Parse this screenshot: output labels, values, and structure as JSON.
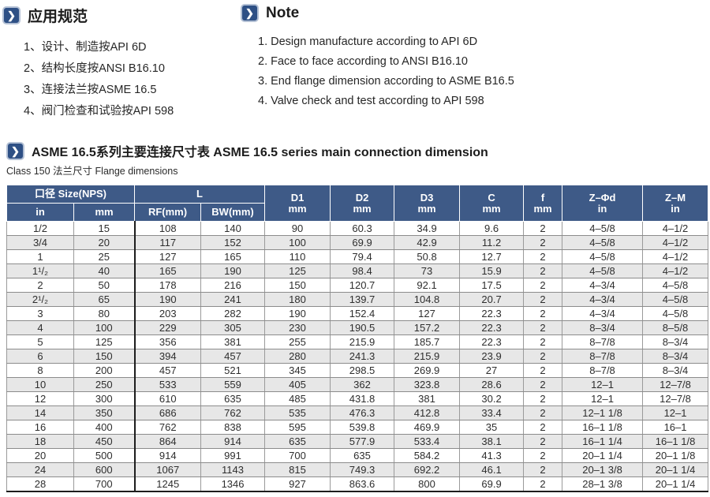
{
  "icons": {
    "chevron_glyph": "❯"
  },
  "spec_section": {
    "title": "应用规范",
    "items": [
      "1、设计、制造按API 6D",
      "2、结构长度按ANSI B16.10",
      "3、连接法兰按ASME 16.5",
      "4、阀门检查和试验按API 598"
    ]
  },
  "note_section": {
    "title": "Note",
    "items": [
      "1. Design manufacture according to API 6D",
      "2. Face to face according to ANSI B16.10",
      "3. End flange dimension according to ASME B16.5",
      "4. Valve check and test according to API 598"
    ]
  },
  "table_section": {
    "title": "ASME 16.5系列主要连接尺寸表 ASME 16.5 series main connection dimension",
    "subtitle": "Class 150 法兰尺寸 Flange dimensions"
  },
  "colors": {
    "header_blue": "#3e5a87",
    "icon_blue": "#2e5085",
    "stripe_gray": "#e7e7e7"
  },
  "table": {
    "headers": {
      "size_group": "口径 Size(NPS)",
      "size_in": "in",
      "size_mm": "mm",
      "l_group": "L",
      "l_rf": "RF(mm)",
      "l_bw": "BW(mm)",
      "d1": [
        "D1",
        "mm"
      ],
      "d2": [
        "D2",
        "mm"
      ],
      "d3": [
        "D3",
        "mm"
      ],
      "c": [
        "C",
        "mm"
      ],
      "f": [
        "f",
        "mm"
      ],
      "zd": [
        "Z–Φd",
        "in"
      ],
      "zm": [
        "Z–M",
        "in"
      ]
    },
    "column_ids": [
      "size-in",
      "size-mm",
      "l-rf",
      "l-bw",
      "d1",
      "d2",
      "d3",
      "c",
      "f",
      "z-phi-d",
      "z-m"
    ],
    "rows": [
      [
        "1/2",
        "15",
        "108",
        "140",
        "90",
        "60.3",
        "34.9",
        "9.6",
        "2",
        "4–5/8",
        "4–1/2"
      ],
      [
        "3/4",
        "20",
        "117",
        "152",
        "100",
        "69.9",
        "42.9",
        "11.2",
        "2",
        "4–5/8",
        "4–1/2"
      ],
      [
        "1",
        "25",
        "127",
        "165",
        "110",
        "79.4",
        "50.8",
        "12.7",
        "2",
        "4–5/8",
        "4–1/2"
      ],
      [
        "1¹/₂",
        "40",
        "165",
        "190",
        "125",
        "98.4",
        "73",
        "15.9",
        "2",
        "4–5/8",
        "4–1/2"
      ],
      [
        "2",
        "50",
        "178",
        "216",
        "150",
        "120.7",
        "92.1",
        "17.5",
        "2",
        "4–3/4",
        "4–5/8"
      ],
      [
        "2¹/₂",
        "65",
        "190",
        "241",
        "180",
        "139.7",
        "104.8",
        "20.7",
        "2",
        "4–3/4",
        "4–5/8"
      ],
      [
        "3",
        "80",
        "203",
        "282",
        "190",
        "152.4",
        "127",
        "22.3",
        "2",
        "4–3/4",
        "4–5/8"
      ],
      [
        "4",
        "100",
        "229",
        "305",
        "230",
        "190.5",
        "157.2",
        "22.3",
        "2",
        "8–3/4",
        "8–5/8"
      ],
      [
        "5",
        "125",
        "356",
        "381",
        "255",
        "215.9",
        "185.7",
        "22.3",
        "2",
        "8–7/8",
        "8–3/4"
      ],
      [
        "6",
        "150",
        "394",
        "457",
        "280",
        "241.3",
        "215.9",
        "23.9",
        "2",
        "8–7/8",
        "8–3/4"
      ],
      [
        "8",
        "200",
        "457",
        "521",
        "345",
        "298.5",
        "269.9",
        "27",
        "2",
        "8–7/8",
        "8–3/4"
      ],
      [
        "10",
        "250",
        "533",
        "559",
        "405",
        "362",
        "323.8",
        "28.6",
        "2",
        "12–1",
        "12–7/8"
      ],
      [
        "12",
        "300",
        "610",
        "635",
        "485",
        "431.8",
        "381",
        "30.2",
        "2",
        "12–1",
        "12–7/8"
      ],
      [
        "14",
        "350",
        "686",
        "762",
        "535",
        "476.3",
        "412.8",
        "33.4",
        "2",
        "12–1 1/8",
        "12–1"
      ],
      [
        "16",
        "400",
        "762",
        "838",
        "595",
        "539.8",
        "469.9",
        "35",
        "2",
        "16–1 1/8",
        "16–1"
      ],
      [
        "18",
        "450",
        "864",
        "914",
        "635",
        "577.9",
        "533.4",
        "38.1",
        "2",
        "16–1 1/4",
        "16–1 1/8"
      ],
      [
        "20",
        "500",
        "914",
        "991",
        "700",
        "635",
        "584.2",
        "41.3",
        "2",
        "20–1 1/4",
        "20–1 1/8"
      ],
      [
        "24",
        "600",
        "1067",
        "1143",
        "815",
        "749.3",
        "692.2",
        "46.1",
        "2",
        "20–1 3/8",
        "20–1 1/4"
      ],
      [
        "28",
        "700",
        "1245",
        "1346",
        "927",
        "863.6",
        "800",
        "69.9",
        "2",
        "28–1 3/8",
        "20–1 1/4"
      ]
    ]
  }
}
